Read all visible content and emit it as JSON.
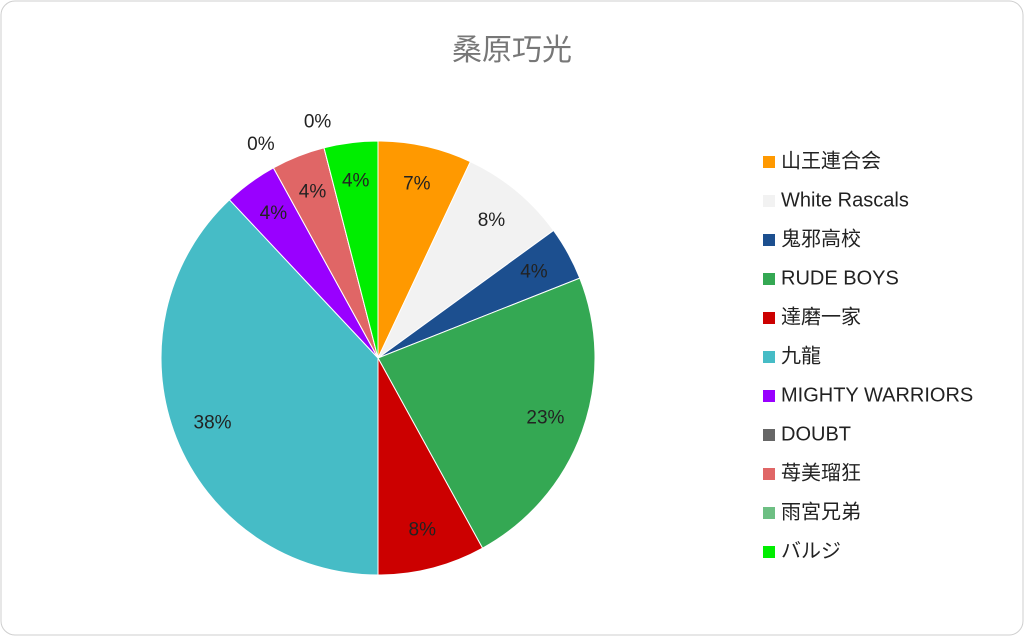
{
  "chart_data": {
    "type": "pie",
    "title": "桑原巧光",
    "categories": [
      "山王連合会",
      "White Rascals",
      "鬼邪高校",
      "RUDE BOYS",
      "達磨一家",
      "九龍",
      "MIGHTY WARRIORS",
      "DOUBT",
      "苺美瑠狂",
      "雨宮兄弟",
      "バルジ"
    ],
    "values": [
      7,
      8,
      4,
      23,
      8,
      38,
      4,
      0,
      4,
      0,
      4
    ],
    "value_labels": [
      "7%",
      "8%",
      "4%",
      "23%",
      "8%",
      "38%",
      "4%",
      "0%",
      "4%",
      "0%",
      "4%"
    ],
    "colors": [
      "#ff9900",
      "#f2f2f2",
      "#1c4f8f",
      "#34a853",
      "#cc0000",
      "#46bcc6",
      "#9900ff",
      "#666666",
      "#e06666",
      "#6dbf83",
      "#00ee00"
    ],
    "legend": "right"
  }
}
